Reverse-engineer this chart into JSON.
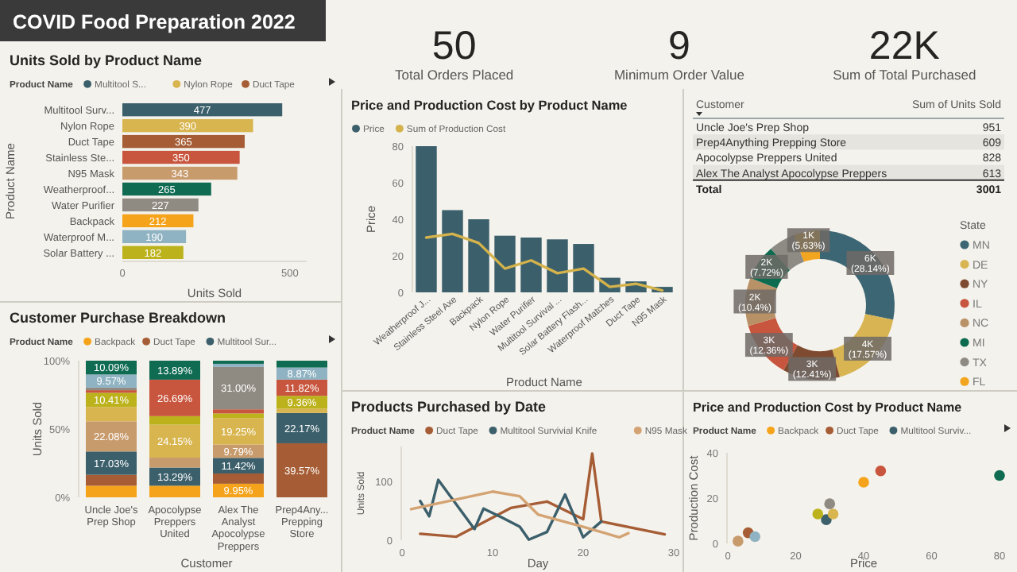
{
  "chart_data": [
    {
      "type": "other",
      "title": "COVID Food Preparation 2022",
      "annotations": [
        "50",
        "Total Orders Placed",
        "9",
        "Minimum Order Value",
        "22K",
        "Sum of Total Purchased"
      ]
    },
    {
      "type": "bar",
      "title": "Units Sold by Product Name",
      "orientation": "horizontal",
      "stacked": true,
      "data_labels": true,
      "legend": "top",
      "legend_title": "Product Name",
      "xlabel": "Units Sold",
      "ylabel": "Product Name",
      "xlim": [
        0,
        550
      ],
      "xticks": [
        0,
        500
      ],
      "categories": [
        "Multitool Surv...",
        "Nylon Rope",
        "Duct Tape",
        "Stainless Ste...",
        "N95 Mask",
        "Weatherproof...",
        "Water Purifier",
        "Backpack",
        "Waterproof M...",
        "Solar Battery ..."
      ],
      "series": [
        {
          "name": "Multitool S...",
          "color": "#3b5f6b",
          "values": [
            477,
            null,
            null,
            null,
            null,
            null,
            null,
            null,
            null,
            null
          ]
        },
        {
          "name": "Nylon Rope",
          "color": "#d8b54e",
          "values": [
            null,
            390,
            null,
            null,
            null,
            null,
            null,
            null,
            null,
            null
          ]
        },
        {
          "name": "Duct Tape",
          "color": "#a65d35",
          "values": [
            null,
            null,
            365,
            null,
            null,
            null,
            null,
            null,
            null,
            null
          ]
        },
        {
          "color": "#c8553d",
          "values": [
            null,
            null,
            null,
            350,
            null,
            null,
            null,
            null,
            null,
            null
          ]
        },
        {
          "color": "#c89b6d",
          "values": [
            null,
            null,
            null,
            null,
            343,
            null,
            null,
            null,
            null,
            null
          ]
        },
        {
          "color": "#0f6b52",
          "values": [
            null,
            null,
            null,
            null,
            null,
            265,
            null,
            null,
            null,
            null
          ]
        },
        {
          "color": "#8f8a82",
          "values": [
            null,
            null,
            null,
            null,
            null,
            null,
            227,
            null,
            null,
            null
          ]
        },
        {
          "color": "#f5a31a",
          "values": [
            null,
            null,
            null,
            null,
            null,
            null,
            null,
            212,
            null,
            null
          ]
        },
        {
          "color": "#8fb3c2",
          "values": [
            null,
            null,
            null,
            null,
            null,
            null,
            null,
            null,
            190,
            null
          ]
        },
        {
          "color": "#bcb21c",
          "values": [
            null,
            null,
            null,
            null,
            null,
            null,
            null,
            null,
            null,
            182
          ]
        }
      ]
    },
    {
      "type": "bar",
      "title": "Price and Production Cost by Product Name",
      "legend": "top",
      "xlabel": "Product Name",
      "ylabel": "Price",
      "ylim": [
        0,
        80
      ],
      "yticks": [
        0,
        20,
        40,
        60,
        80
      ],
      "categories": [
        "Weatherproof J...",
        "Stainless Steel Axe",
        "Backpack",
        "Nylon Rope",
        "Water Purifier",
        "Multitool Survival ...",
        "Solar Battery Flash...",
        "Waterproof Matches",
        "Duct Tape",
        "N95 Mask"
      ],
      "series": [
        {
          "name": "Price",
          "type": "bar",
          "color": "#3b5f6b",
          "values": [
            80,
            45,
            40,
            31,
            30,
            29,
            26.5,
            8,
            6,
            3
          ]
        },
        {
          "name": "Sum of Production Cost",
          "type": "line",
          "color": "#d4b24c",
          "values": [
            30,
            32,
            27,
            13,
            17.5,
            10.5,
            13,
            3,
            4.7,
            1
          ]
        }
      ]
    },
    {
      "type": "other",
      "data_labels": true,
      "xlabel": "Customer",
      "ylabel": "Sum of Units Sold",
      "categories": [
        "Uncle Joe's Prep Shop",
        "Prep4Anything Prepping Store",
        "Apocolypse Preppers United",
        "Alex The Analyst Apocolypse Preppers"
      ],
      "values": [
        951,
        609,
        828,
        613
      ],
      "annotations": [
        "Total",
        "3001"
      ]
    },
    {
      "type": "donut",
      "legend": "right",
      "legend_title": "State",
      "categories": [
        "MN",
        "DE",
        "NY",
        "IL",
        "NC",
        "MI",
        "TX",
        "FL"
      ],
      "values": [
        28.14,
        17.57,
        12.41,
        12.36,
        10.4,
        7.72,
        5.77,
        5.63
      ],
      "colors": [
        "#3d6674",
        "#d8b552",
        "#7e4a30",
        "#c8553d",
        "#b99167",
        "#0d6b50",
        "#8e8a84",
        "#f2a51e"
      ],
      "value_labels": [
        "6K (28.14%)",
        "4K (17.57%)",
        "3K (12.41%)",
        "3K (12.36%)",
        "2K (10.4%)",
        "2K (7.72%)",
        null,
        "1K (5.63%)"
      ]
    },
    {
      "type": "bar",
      "title": "Customer Purchase Breakdown",
      "stacked": true,
      "legend": "top",
      "legend_title": "Product Name",
      "xlabel": "Customer",
      "ylabel": "Units Sold",
      "ylim": [
        0,
        100
      ],
      "yticks": [
        {
          "value": 0,
          "label": "0%"
        },
        {
          "value": 50,
          "label": "50%"
        },
        {
          "value": 100,
          "label": "100%"
        }
      ],
      "categories": [
        "Uncle Joe's Prep Shop",
        "Apocolypse Preppers United",
        "Alex The Analyst Apocolypse Preppers",
        "Prep4Any... Prepping Store"
      ],
      "series": [
        {
          "name": "Backpack",
          "color": "#f5a31a",
          "values": [
            8.5,
            8.5,
            9.95,
            null
          ],
          "value_labels": [
            null,
            null,
            "9.95%",
            null
          ]
        },
        {
          "name": "Duct Tape",
          "color": "#a65d35",
          "values": [
            8,
            null,
            7.5,
            39.57
          ],
          "value_labels": [
            null,
            null,
            null,
            "39.57%"
          ]
        },
        {
          "name": "Multitool Sur...",
          "color": "#3b5f6b",
          "values": [
            17.03,
            13.29,
            11.42,
            22.17
          ],
          "value_labels": [
            "17.03%",
            "13.29%",
            "11.42%",
            "22.17%"
          ]
        },
        {
          "color": "#c89b6d",
          "values": [
            22.08,
            7.3,
            9.79,
            null
          ],
          "value_labels": [
            "22.08%",
            null,
            "9.79%",
            null
          ]
        },
        {
          "color": "#d8b54e",
          "values": [
            10.5,
            24.15,
            19.25,
            3.21
          ],
          "value_labels": [
            null,
            "24.15%",
            "19.25%",
            null
          ]
        },
        {
          "color": "#bcb21c",
          "values": [
            10.41,
            6.18,
            3.5,
            9.36
          ],
          "value_labels": [
            "10.41%",
            null,
            null,
            "9.36%"
          ]
        },
        {
          "color": "#c8553d",
          "values": [
            1.9,
            26.69,
            3,
            11.82
          ],
          "value_labels": [
            null,
            "26.69%",
            null,
            "11.82%"
          ]
        },
        {
          "color": "#8f8a82",
          "values": [
            1.92,
            null,
            31,
            null
          ],
          "value_labels": [
            null,
            null,
            "31.00%",
            null
          ]
        },
        {
          "color": "#8fb3c2",
          "values": [
            9.57,
            null,
            2.3,
            8.87
          ],
          "value_labels": [
            "9.57%",
            null,
            null,
            "8.87%"
          ]
        },
        {
          "color": "#0f6b52",
          "values": [
            10.09,
            13.89,
            2.29,
            5
          ],
          "value_labels": [
            "10.09%",
            "13.89%",
            null,
            null
          ]
        }
      ]
    },
    {
      "type": "line",
      "title": "Products Purchased by Date",
      "legend": "top",
      "legend_title": "Product Name",
      "xlabel": "Day",
      "ylabel": "Units Sold",
      "xlim": [
        0,
        30
      ],
      "xticks": [
        0,
        10,
        20,
        30
      ],
      "ylim": [
        0,
        160
      ],
      "yticks": [
        0,
        100
      ],
      "series": [
        {
          "name": "Duct Tape",
          "color": "#a65d35",
          "x": [
            2,
            6,
            12,
            16,
            20,
            21,
            22,
            29
          ],
          "values": [
            11,
            6,
            55,
            66,
            36,
            148,
            32,
            10
          ]
        },
        {
          "name": "Multitool Survivial Knife",
          "color": "#3b5f6b",
          "x": [
            2,
            3,
            4,
            8,
            9,
            11,
            13,
            14,
            16,
            18,
            20,
            22
          ],
          "values": [
            67,
            41,
            103,
            19,
            54,
            39,
            23,
            1,
            14,
            78,
            5,
            32
          ]
        },
        {
          "name": "N95 Mask",
          "color": "#d4a373",
          "x": [
            1,
            10,
            13,
            15,
            20,
            24,
            25
          ],
          "values": [
            53,
            83,
            75,
            44,
            23,
            5,
            12
          ]
        }
      ]
    },
    {
      "type": "scatter",
      "title": "Price and Production Cost by Product Name",
      "legend": "top",
      "legend_title": "Product Name",
      "xlabel": "Price",
      "ylabel": "Production Cost",
      "xlim": [
        0,
        80
      ],
      "xticks": [
        0,
        20,
        40,
        60,
        80
      ],
      "ylim": [
        0,
        40
      ],
      "yticks": [
        0,
        20,
        40
      ],
      "series": [
        {
          "name": "Backpack",
          "color": "#f5a31a",
          "x": [
            40
          ],
          "values": [
            27
          ]
        },
        {
          "name": "Duct Tape",
          "color": "#a65d35",
          "x": [
            6
          ],
          "values": [
            4.7
          ]
        },
        {
          "name": "Multitool Surviv...",
          "color": "#3b5f6b",
          "x": [
            29
          ],
          "values": [
            10.5
          ]
        },
        {
          "color": "#c89b6d",
          "x": [
            3
          ],
          "values": [
            1
          ]
        },
        {
          "color": "#d8b54e",
          "x": [
            31
          ],
          "values": [
            13
          ]
        },
        {
          "color": "#bcb21c",
          "x": [
            26.5
          ],
          "values": [
            13
          ]
        },
        {
          "color": "#c8553d",
          "x": [
            45
          ],
          "values": [
            32
          ]
        },
        {
          "color": "#8f8a82",
          "x": [
            30
          ],
          "values": [
            17.5
          ]
        },
        {
          "color": "#8fb3c2",
          "x": [
            8
          ],
          "values": [
            3
          ]
        },
        {
          "color": "#0f6b52",
          "x": [
            80
          ],
          "values": [
            30
          ]
        }
      ]
    }
  ]
}
